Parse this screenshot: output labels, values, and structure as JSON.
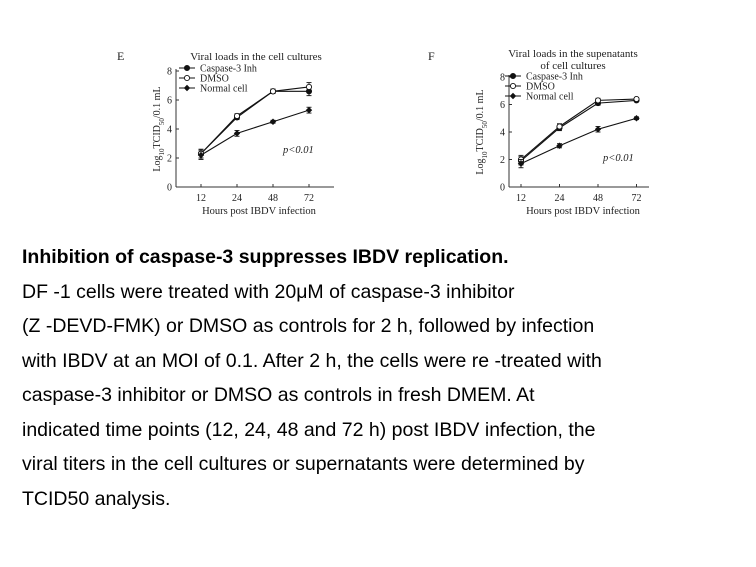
{
  "chart_data": [
    {
      "type": "line",
      "panel_label": "E",
      "title": "Viral loads in the cell cultures",
      "title_lines": [
        "Viral loads in the cell cultures"
      ],
      "xlabel": "Hours post IBDV infection",
      "ylabel": "Log10TCID50/0.1mL",
      "ylabel_parts": {
        "pre": "Log",
        "sub1": "10",
        "mid": "TCID",
        "sub2": "50",
        "post": "/0.1 mL"
      },
      "categories": [
        "12",
        "24",
        "48",
        "72"
      ],
      "yticks": [
        0,
        2,
        4,
        6,
        8
      ],
      "ylim": [
        0,
        8
      ],
      "annotation": "p<0.01",
      "legend_position": "top-left",
      "series": [
        {
          "name": "Caspase-3 Inh",
          "marker": "filled-circle",
          "values": [
            2.3,
            4.8,
            6.6,
            6.6
          ],
          "errors": [
            0.3,
            0.15,
            0.15,
            0.3
          ]
        },
        {
          "name": "DMSO",
          "marker": "open-circle",
          "values": [
            2.3,
            4.9,
            6.6,
            6.9
          ],
          "errors": [
            0.3,
            0.15,
            0.15,
            0.3
          ]
        },
        {
          "name": "Normal cell",
          "marker": "filled-diamond",
          "values": [
            2.2,
            3.7,
            4.5,
            5.3
          ],
          "errors": [
            0.3,
            0.2,
            0.1,
            0.2
          ]
        }
      ]
    },
    {
      "type": "line",
      "panel_label": "F",
      "title": "Viral loads in the supenatants of cell cultures",
      "title_lines": [
        "Viral loads in the supenatants",
        "of cell cultures"
      ],
      "xlabel": "Hours post IBDV infection",
      "ylabel": "Log10TCID50/0.1mL",
      "ylabel_parts": {
        "pre": "Log",
        "sub1": "10",
        "mid": "TCID",
        "sub2": "50",
        "post": "/0.1 mL"
      },
      "categories": [
        "12",
        "24",
        "48",
        "72"
      ],
      "yticks": [
        0,
        2,
        4,
        6,
        8
      ],
      "ylim": [
        0,
        8
      ],
      "annotation": "p<0.01",
      "legend_position": "top-left",
      "series": [
        {
          "name": "Caspase-3 Inh",
          "marker": "filled-circle",
          "values": [
            1.9,
            4.3,
            6.1,
            6.3
          ],
          "errors": [
            0.3,
            0.2,
            0.15,
            0.1
          ]
        },
        {
          "name": "DMSO",
          "marker": "open-circle",
          "values": [
            2.0,
            4.4,
            6.3,
            6.4
          ],
          "errors": [
            0.3,
            0.2,
            0.15,
            0.1
          ]
        },
        {
          "name": "Normal cell",
          "marker": "filled-diamond",
          "values": [
            1.7,
            3.0,
            4.2,
            5.0
          ],
          "errors": [
            0.3,
            0.15,
            0.2,
            0.1
          ]
        }
      ]
    }
  ],
  "caption": {
    "title": "Inhibition of caspase-3 suppresses IBDV replication.",
    "lines": [
      "DF -1 cells were treated with 20μM of caspase-3 inhibitor",
      "(Z -DEVD-FMK) or DMSO as controls for 2 h, followed by infection",
      "with IBDV at an MOI of 0.1. After 2 h, the cells were re -treated with",
      "caspase-3 inhibitor or DMSO as controls in fresh DMEM. At",
      "indicated time points (12, 24, 48 and 72 h) post IBDV infection, the",
      "viral titers in the cell cultures or supernatants were determined by",
      "TCID50 analysis."
    ]
  }
}
